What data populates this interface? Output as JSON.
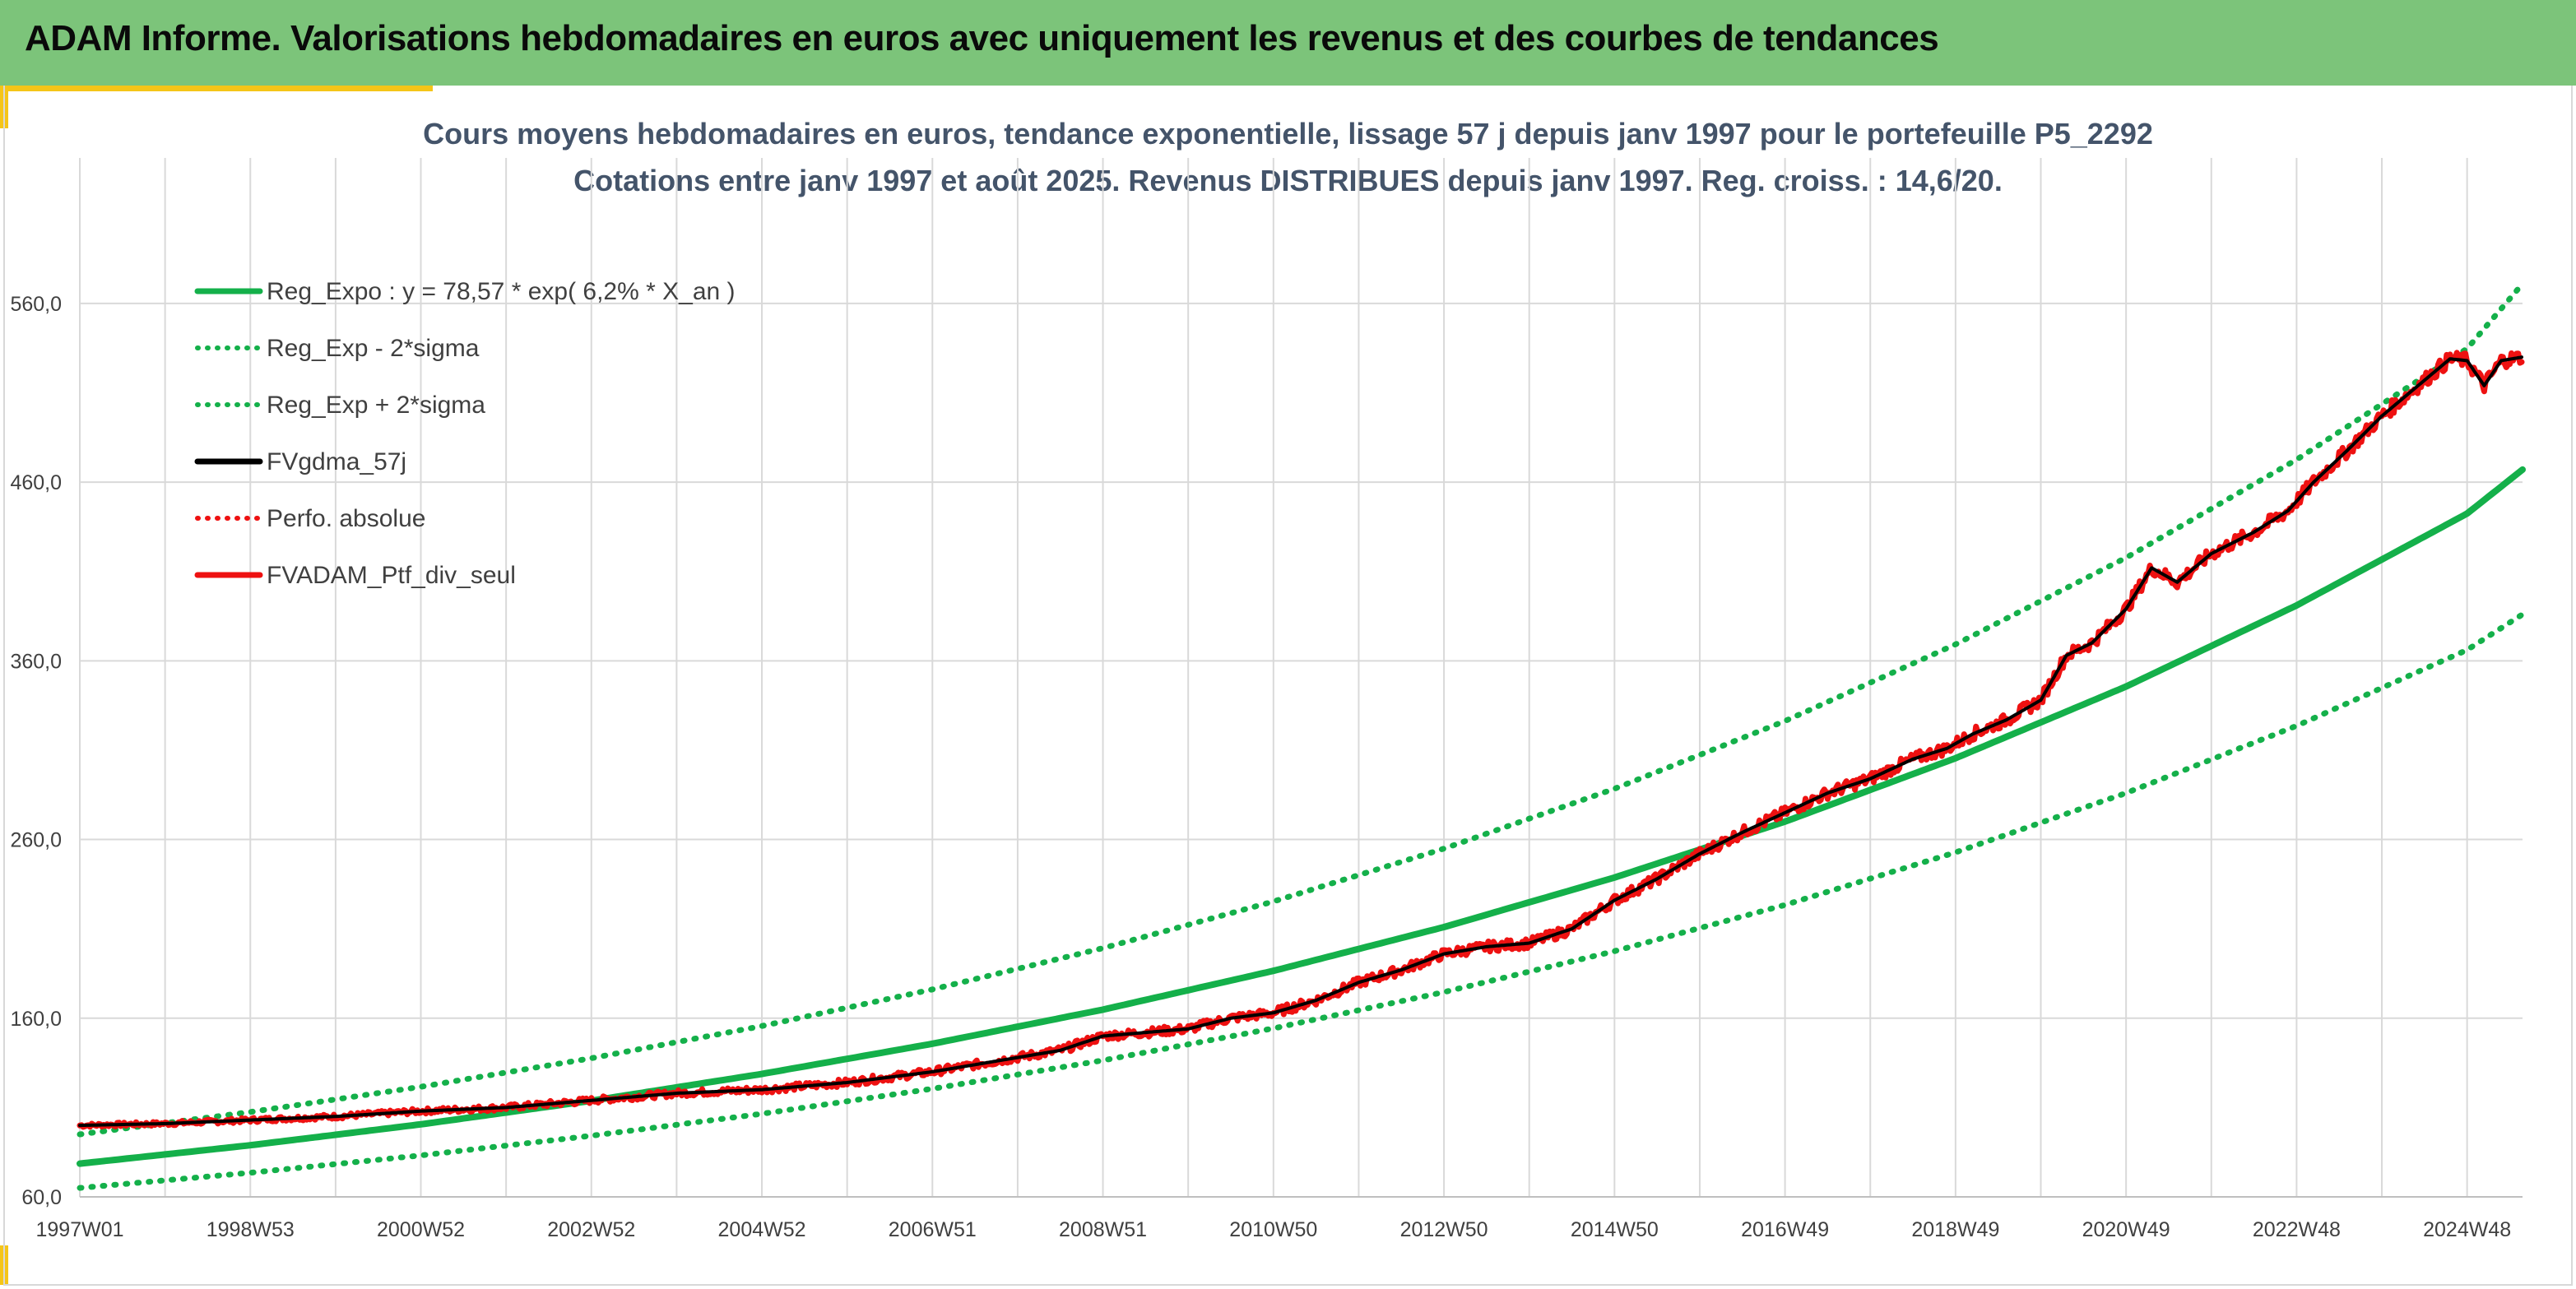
{
  "header": {
    "title": "ADAM Informe. Valorisations hebdomadaires en euros avec uniquement les revenus et des courbes de tendances"
  },
  "colors": {
    "header_bg": "#7cc47a",
    "accent": "#f5c518",
    "green": "#14b04a",
    "black": "#000000",
    "red": "#ee1111",
    "grid": "#d9d9d9"
  },
  "chart_data": {
    "type": "line",
    "title": "Cours moyens hebdomadaires en euros, tendance exponentielle, lissage 57 j depuis janv 1997 pour le portefeuille P5_2292",
    "subtitle": "Cotations entre janv 1997 et août 2025. Revenus DISTRIBUES depuis janv 1997. Reg. croiss. : 14,6/20.",
    "ylim": [
      60,
      560
    ],
    "yticks": [
      "60,0",
      "160,0",
      "260,0",
      "360,0",
      "460,0",
      "560,0"
    ],
    "ytick_values": [
      60,
      160,
      260,
      360,
      460,
      560
    ],
    "xlim": [
      1997.0,
      2025.65
    ],
    "xticks": [
      "1997W01",
      "1998W53",
      "2000W52",
      "2002W52",
      "2004W52",
      "2006W51",
      "2008W51",
      "2010W50",
      "2012W50",
      "2014W50",
      "2016W49",
      "2018W49",
      "2020W49",
      "2022W48",
      "2024W48"
    ],
    "xtick_values": [
      1997.0,
      1999.0,
      2001.0,
      2003.0,
      2005.0,
      2007.0,
      2009.0,
      2011.0,
      2013.0,
      2015.0,
      2017.0,
      2019.0,
      2021.0,
      2023.0,
      2025.0
    ],
    "grid": true,
    "legend_position": "top-left",
    "legend": [
      {
        "label": "Reg_Expo : y = 78,57 * exp( 6,2% *  X_an )",
        "color": "#14b04a",
        "style": "solid"
      },
      {
        "label": "Reg_Exp - 2*sigma",
        "color": "#14b04a",
        "style": "dotted"
      },
      {
        "label": "Reg_Exp + 2*sigma",
        "color": "#14b04a",
        "style": "dotted"
      },
      {
        "label": "FVgdma_57j",
        "color": "#000000",
        "style": "solid"
      },
      {
        "label": "Perfo. absolue",
        "color": "#ee1111",
        "style": "dotted"
      },
      {
        "label": "FVADAM_Ptf_div_seul",
        "color": "#ee1111",
        "style": "solid"
      }
    ],
    "series": [
      {
        "name": "Reg_Expo : y = 78,57 * exp( 6,2% *  X_an )",
        "x": [
          1997,
          1999,
          2001,
          2003,
          2005,
          2007,
          2009,
          2011,
          2013,
          2015,
          2017,
          2019,
          2021,
          2023,
          2025,
          2025.65
        ],
        "values": [
          78.6,
          88.9,
          100.6,
          113.8,
          128.8,
          145.7,
          164.8,
          186.5,
          211.0,
          238.7,
          270.0,
          305.5,
          345.6,
          391.0,
          442.4,
          467.0
        ]
      },
      {
        "name": "Reg_Exp - 2*sigma",
        "x": [
          1997,
          1999,
          2001,
          2003,
          2005,
          2007,
          2009,
          2011,
          2013,
          2015,
          2017,
          2019,
          2021,
          2023,
          2025,
          2025.65
        ],
        "values": [
          65.0,
          73.5,
          83.2,
          94.2,
          106.5,
          120.5,
          136.4,
          154.3,
          174.6,
          197.5,
          223.4,
          252.8,
          286.0,
          323.6,
          366.1,
          386.0
        ]
      },
      {
        "name": "Reg_Exp + 2*sigma",
        "x": [
          1997,
          1999,
          2001,
          2003,
          2005,
          2007,
          2009,
          2011,
          2013,
          2015,
          2017,
          2019,
          2021,
          2023,
          2025,
          2025.65
        ],
        "values": [
          95.0,
          107.5,
          121.6,
          137.6,
          155.6,
          176.1,
          199.2,
          225.3,
          254.9,
          288.4,
          326.3,
          369.2,
          417.7,
          472.6,
          534.7,
          571.0
        ]
      },
      {
        "name": "FVgdma_57j",
        "x": [
          1997.0,
          1998.0,
          1999.0,
          2000.0,
          2001.0,
          2002.0,
          2003.0,
          2004.0,
          2005.0,
          2006.0,
          2007.0,
          2008.0,
          2008.5,
          2009.0,
          2010.0,
          2010.5,
          2011.0,
          2011.5,
          2012.0,
          2012.5,
          2013.0,
          2013.5,
          2014.0,
          2014.5,
          2015.0,
          2015.5,
          2016.0,
          2016.5,
          2017.0,
          2017.5,
          2018.0,
          2018.5,
          2018.9,
          2019.2,
          2019.6,
          2020.0,
          2020.3,
          2020.6,
          2021.0,
          2021.3,
          2021.6,
          2022.0,
          2022.5,
          2022.9,
          2023.2,
          2023.6,
          2024.0,
          2024.5,
          2024.8,
          2025.0,
          2025.2,
          2025.4,
          2025.65
        ],
        "values": [
          100,
          101,
          103,
          105,
          108,
          110,
          114,
          118,
          120,
          124,
          130,
          138,
          142,
          150,
          154,
          160,
          163,
          170,
          180,
          187,
          196,
          200,
          202,
          210,
          226,
          238,
          252,
          264,
          275,
          286,
          294,
          305,
          311,
          319,
          327,
          338,
          363,
          370,
          389,
          412,
          404,
          420,
          432,
          444,
          460,
          478,
          497,
          517,
          529,
          528,
          514,
          528,
          530
        ]
      },
      {
        "name": "FVADAM_Ptf_div_seul",
        "x": [
          1997.0,
          1998.0,
          1999.0,
          2000.0,
          2001.0,
          2002.0,
          2003.0,
          2004.0,
          2005.0,
          2006.0,
          2007.0,
          2008.0,
          2008.5,
          2009.0,
          2010.0,
          2010.5,
          2011.0,
          2011.5,
          2012.0,
          2012.5,
          2013.0,
          2013.5,
          2014.0,
          2014.5,
          2015.0,
          2015.5,
          2016.0,
          2016.5,
          2017.0,
          2017.5,
          2018.0,
          2018.5,
          2018.9,
          2019.2,
          2019.6,
          2020.0,
          2020.3,
          2020.6,
          2021.0,
          2021.3,
          2021.6,
          2022.0,
          2022.5,
          2022.9,
          2023.2,
          2023.6,
          2024.0,
          2024.5,
          2024.8,
          2025.0,
          2025.2,
          2025.4,
          2025.65
        ],
        "values": [
          100,
          101,
          103,
          105,
          108,
          110,
          114,
          118,
          120,
          124,
          130,
          138,
          142,
          150,
          154,
          160,
          163,
          170,
          180,
          187,
          196,
          200,
          202,
          210,
          226,
          238,
          252,
          264,
          275,
          286,
          294,
          305,
          311,
          319,
          327,
          338,
          363,
          370,
          389,
          412,
          404,
          420,
          432,
          444,
          460,
          478,
          497,
          517,
          529,
          528,
          514,
          528,
          530
        ]
      }
    ]
  }
}
